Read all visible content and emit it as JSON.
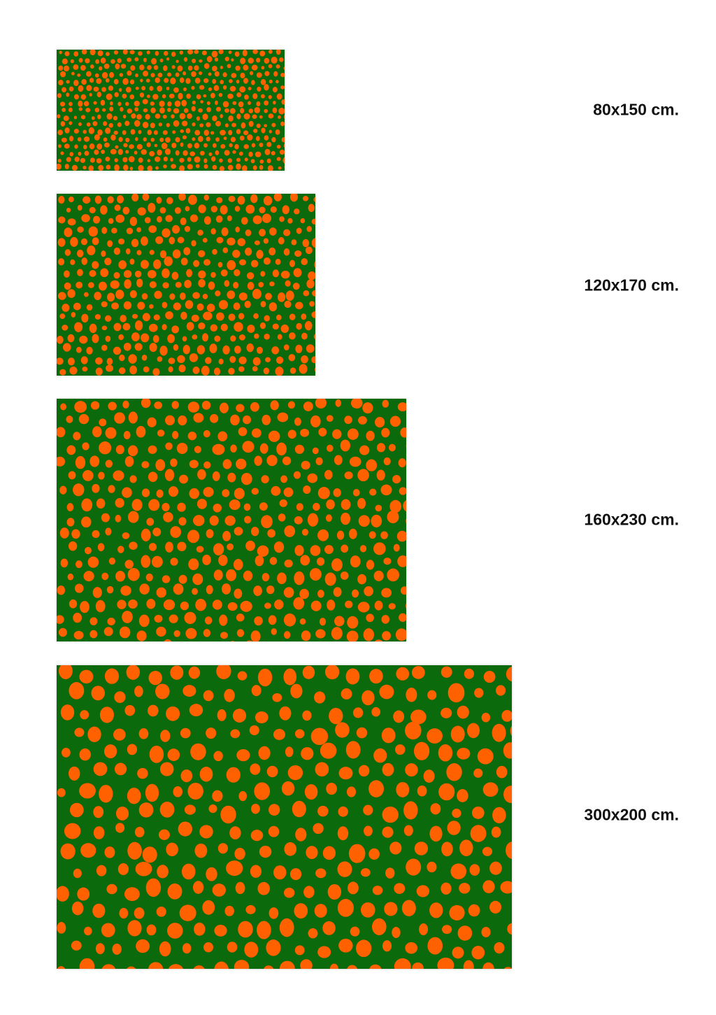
{
  "colors": {
    "background": "#0b6a0b",
    "dots": "#ff6000",
    "page": "#ffffff"
  },
  "rugs": [
    {
      "size_label": "80x150 cm."
    },
    {
      "size_label": "120x170 cm."
    },
    {
      "size_label": "160x230 cm."
    },
    {
      "size_label": "300x200 cm."
    }
  ]
}
